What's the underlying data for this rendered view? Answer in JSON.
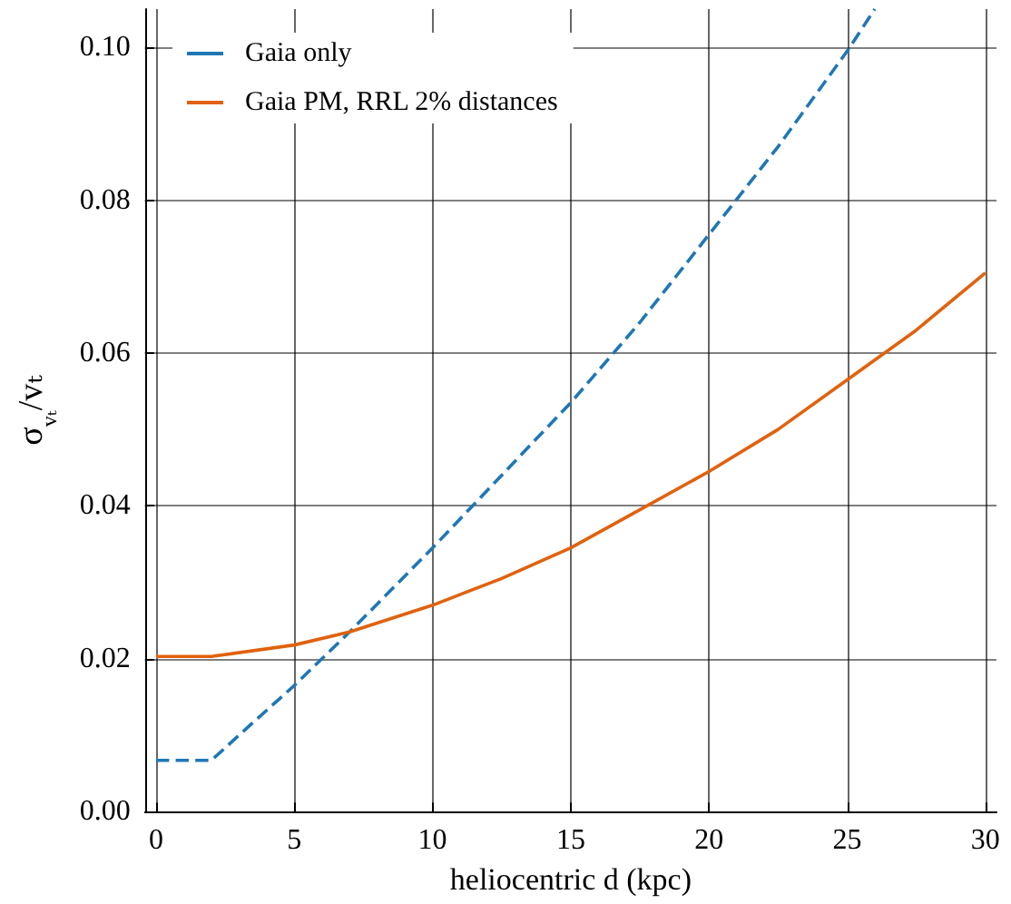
{
  "chart_data": {
    "type": "line",
    "xlabel": "heliocentric d (kpc)",
    "ylabel": "σ$_{vₜ}$/vₜ",
    "xlim": [
      -0.4,
      30.4
    ],
    "xticks": [
      0,
      5,
      10,
      15,
      20,
      25,
      30
    ],
    "ylim": [
      0,
      0.105
    ],
    "yticks": [
      {
        "value": 0,
        "label": "0.00"
      },
      {
        "value": 0.02,
        "label": "0.02"
      },
      {
        "value": 0.04,
        "label": "0.04"
      },
      {
        "value": 0.06,
        "label": "0.06"
      },
      {
        "value": 0.08,
        "label": "0.08"
      },
      {
        "value": 0.1,
        "label": "0.10"
      }
    ],
    "grid": true,
    "legend": "top left",
    "marker": "none",
    "series": [
      {
        "name": "Gaia only",
        "color": "#1f77b4",
        "line_style": "dashed",
        "x": [
          0,
          2,
          3,
          5,
          7,
          10,
          12.5,
          15,
          17.5,
          20,
          22.5,
          25,
          26
        ],
        "values": [
          0.0067,
          0.0067,
          0.01,
          0.0165,
          0.0235,
          0.0345,
          0.044,
          0.0535,
          0.064,
          0.0755,
          0.087,
          0.0995,
          0.105
        ]
      },
      {
        "name": "Gaia PM, RRL 2% distances",
        "color": "#e0620e",
        "line_style": "solid",
        "x": [
          0,
          2,
          5,
          7,
          10,
          12.5,
          15,
          17.5,
          20,
          22.5,
          25,
          27.5,
          30
        ],
        "values": [
          0.0203,
          0.0203,
          0.0218,
          0.0235,
          0.027,
          0.0305,
          0.0345,
          0.0395,
          0.0445,
          0.05,
          0.0565,
          0.063,
          0.0705
        ]
      }
    ]
  }
}
